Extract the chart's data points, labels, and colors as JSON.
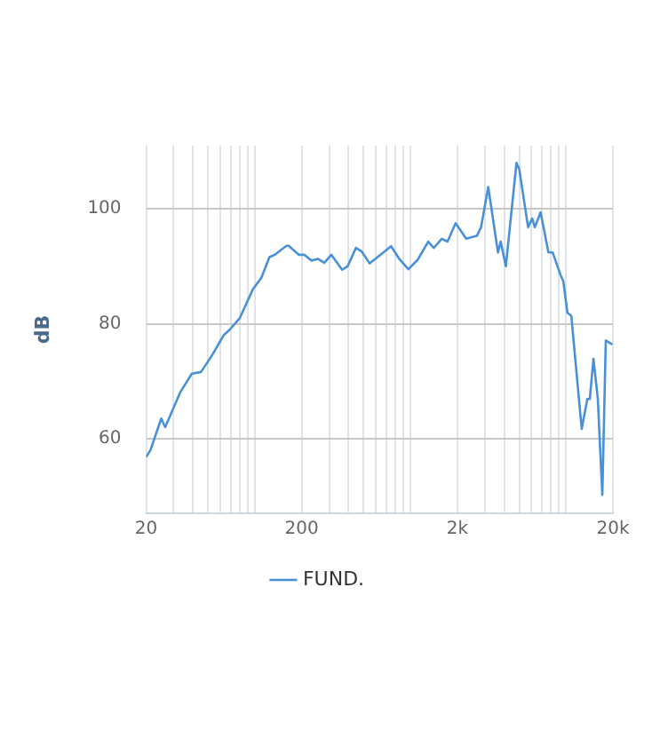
{
  "chart_data": {
    "type": "line",
    "ylabel": "dB",
    "x": [
      20,
      21.3,
      25,
      26.5,
      33,
      39.3,
      45,
      53,
      63,
      69,
      80,
      97,
      110,
      124,
      134,
      158,
      164,
      192,
      208,
      231,
      254,
      279,
      310,
      364,
      394,
      446,
      485,
      546,
      640,
      750,
      846,
      968,
      1110,
      1300,
      1410,
      1590,
      1730,
      1950,
      2280,
      2670,
      2840,
      3160,
      3650,
      3800,
      4100,
      4800,
      5000,
      5700,
      6060,
      6300,
      6860,
      7700,
      8200,
      9240,
      9600,
      10200,
      10800,
      12600,
      13700,
      14200,
      15000,
      16000,
      17100,
      18000,
      19800
    ],
    "series": [
      {
        "name": "FUND.",
        "color": "#4a90d9",
        "values": [
          56.8,
          58,
          63.5,
          62,
          68,
          71.3,
          71.6,
          74.5,
          78,
          79,
          81,
          86,
          88,
          91.6,
          92,
          93.5,
          93.6,
          92,
          92,
          91,
          91.3,
          90.6,
          92,
          89.4,
          90,
          93.2,
          92.6,
          90.5,
          92,
          93.5,
          91.3,
          89.5,
          91.1,
          94.3,
          93.2,
          94.8,
          94.3,
          97.5,
          94.8,
          95.3,
          96.8,
          103.8,
          92.4,
          94.3,
          90,
          108,
          106.9,
          96.8,
          98.3,
          96.8,
          99.4,
          92.4,
          92.4,
          88.4,
          87.4,
          81.9,
          81.4,
          61.7,
          66.9,
          66.9,
          73.9,
          66.9,
          50.2,
          77.1,
          76.4
        ]
      }
    ],
    "log": "x",
    "xlim": [
      20,
      20000
    ],
    "xticks": [
      20,
      {
        "value": 30,
        "label": null
      },
      {
        "value": 40,
        "label": null
      },
      {
        "value": 50,
        "label": null
      },
      {
        "value": 60,
        "label": null
      },
      {
        "value": 70,
        "label": null
      },
      {
        "value": 80,
        "label": null
      },
      {
        "value": 90,
        "label": null
      },
      {
        "value": 100,
        "label": null
      },
      200,
      {
        "value": 300,
        "label": null
      },
      {
        "value": 400,
        "label": null
      },
      {
        "value": 500,
        "label": null
      },
      {
        "value": 600,
        "label": null
      },
      {
        "value": 700,
        "label": null
      },
      {
        "value": 800,
        "label": null
      },
      {
        "value": 900,
        "label": null
      },
      {
        "value": 1000,
        "label": null
      },
      {
        "value": 2000,
        "label": "2k"
      },
      {
        "value": 3000,
        "label": null
      },
      {
        "value": 4000,
        "label": null
      },
      {
        "value": 5000,
        "label": null
      },
      {
        "value": 6000,
        "label": null
      },
      {
        "value": 7000,
        "label": null
      },
      {
        "value": 8000,
        "label": null
      },
      {
        "value": 9000,
        "label": null
      },
      {
        "value": 10000,
        "label": null
      },
      {
        "value": 20000,
        "label": "20k"
      }
    ],
    "ylim": [
      47,
      111
    ],
    "yticks": [
      60,
      80,
      100
    ],
    "grid": true,
    "legend": "bottom",
    "marker": "none",
    "line_style": "solid"
  }
}
